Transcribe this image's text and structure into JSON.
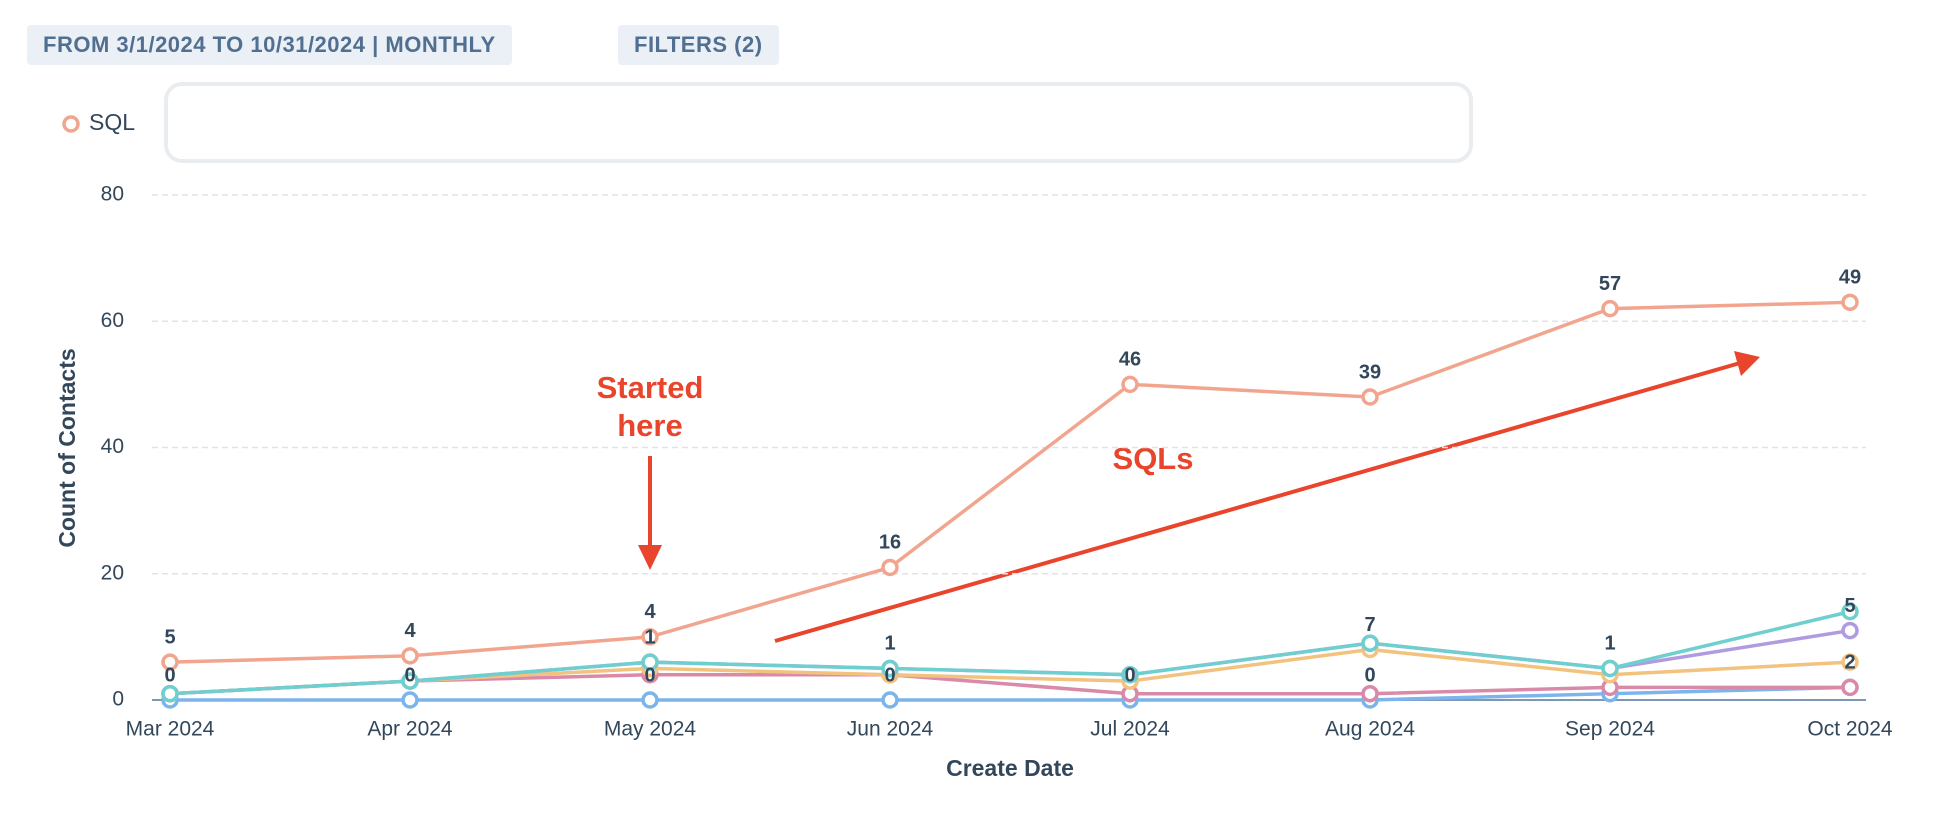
{
  "header": {
    "date_range": "FROM 3/1/2024 TO 10/31/2024 | MONTHLY",
    "filters": "FILTERS (2)"
  },
  "chart_data": {
    "type": "stacked_line",
    "x_label": "Create Date",
    "y_label": "Count of Contacts",
    "categories": [
      "Mar 2024",
      "Apr 2024",
      "May 2024",
      "Jun 2024",
      "Jul 2024",
      "Aug 2024",
      "Sep 2024",
      "Oct 2024"
    ],
    "series": [
      {
        "color": "#7cb4ec",
        "values": [
          0,
          0,
          0,
          0,
          0,
          0,
          1,
          2
        ],
        "value_labels": [
          "0",
          "0",
          "0",
          "0",
          "0",
          "0",
          null,
          "2"
        ]
      },
      {
        "color": "#d98aa9",
        "values": [
          1,
          3,
          4,
          4,
          1,
          1,
          1,
          0
        ],
        "value_labels": [
          null,
          null,
          null,
          null,
          null,
          null,
          null,
          null
        ]
      },
      {
        "color": "#f2c27f",
        "values": [
          0,
          0,
          1,
          0,
          2,
          7,
          2,
          4
        ],
        "value_labels": [
          null,
          null,
          null,
          null,
          null,
          "7",
          null,
          null
        ]
      },
      {
        "color": "#b19be0",
        "values": [
          0,
          0,
          1,
          1,
          1,
          1,
          1,
          5
        ],
        "value_labels": [
          null,
          null,
          "1",
          "1",
          null,
          null,
          "1",
          "5"
        ]
      },
      {
        "color": "#6fcfcf",
        "values": [
          0,
          0,
          0,
          0,
          0,
          0,
          0,
          3
        ],
        "value_labels": [
          null,
          null,
          null,
          null,
          null,
          null,
          null,
          null
        ]
      },
      {
        "name": "SQL",
        "color": "#f2a58e",
        "values": [
          5,
          4,
          4,
          16,
          46,
          39,
          57,
          49
        ],
        "value_labels": [
          "5",
          "4",
          "4",
          "16",
          "46",
          "39",
          "57",
          "49"
        ]
      }
    ],
    "ylim": [
      0,
      80
    ],
    "yticks": [
      0,
      20,
      40,
      60,
      80
    ],
    "grid": true,
    "annotations": [
      {
        "text_lines": [
          "Started",
          "here"
        ]
      },
      {
        "text": "SQLs"
      }
    ]
  }
}
